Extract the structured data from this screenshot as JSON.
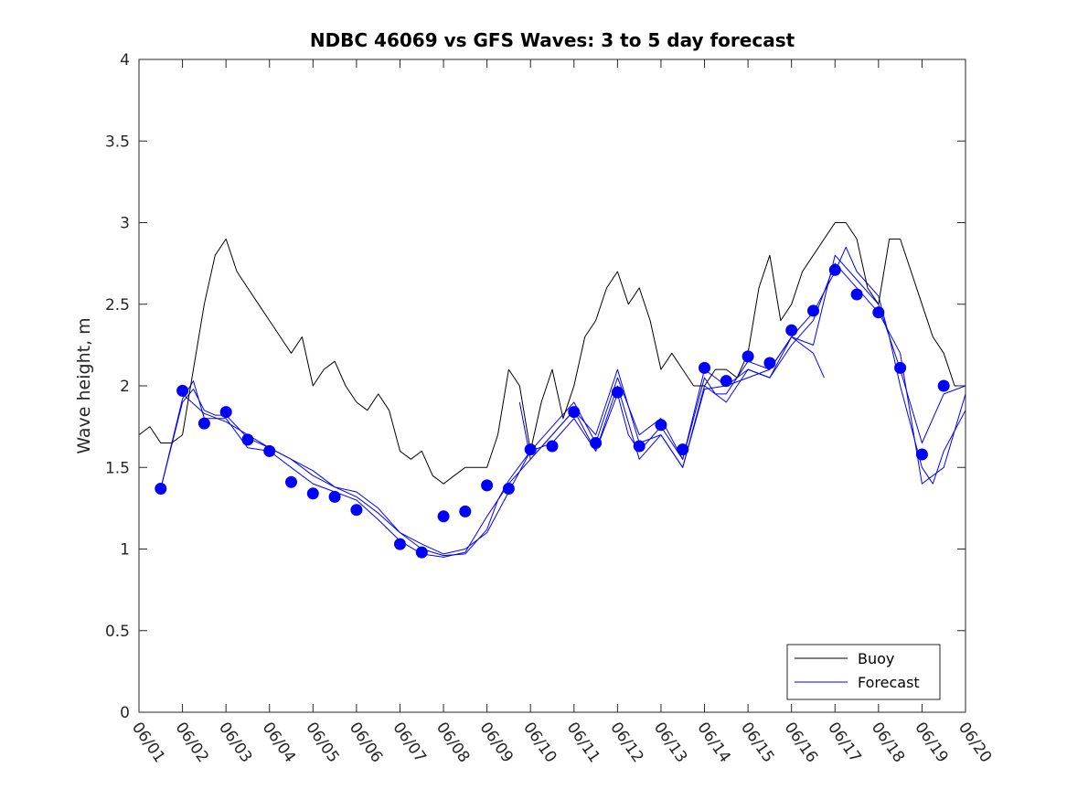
{
  "chart_data": {
    "type": "line",
    "title": "NDBC 46069 vs GFS Waves: 3 to 5 day forecast",
    "xlabel": "",
    "ylabel": "Wave height, m",
    "xlim": [
      "06/01",
      "06/20"
    ],
    "ylim": [
      0,
      4
    ],
    "yticks": [
      0,
      0.5,
      1,
      1.5,
      2,
      2.5,
      3,
      3.5,
      4
    ],
    "ytick_labels": [
      "0",
      "0.5",
      "1",
      "1.5",
      "2",
      "2.5",
      "3",
      "3.5",
      "4"
    ],
    "xtick_labels": [
      "06/01",
      "06/02",
      "06/03",
      "06/04",
      "06/05",
      "06/06",
      "06/07",
      "06/08",
      "06/09",
      "06/10",
      "06/11",
      "06/12",
      "06/13",
      "06/14",
      "06/15",
      "06/16",
      "06/17",
      "06/18",
      "06/19",
      "06/20"
    ],
    "grid": false,
    "legend_position": "bottom-right",
    "legend": [
      {
        "label": "Buoy",
        "color": "#000000"
      },
      {
        "label": "Forecast",
        "color": "#0000ff"
      }
    ],
    "colors": {
      "buoy": "#000000",
      "forecast": "#0000ff"
    },
    "buoy": {
      "name": "Buoy",
      "x": [
        "06/01 00:00",
        "06/01 06:00",
        "06/01 12:00",
        "06/01 18:00",
        "06/02 00:00",
        "06/02 06:00",
        "06/02 12:00",
        "06/02 18:00",
        "06/03 00:00",
        "06/03 06:00",
        "06/03 12:00",
        "06/03 18:00",
        "06/04 00:00",
        "06/04 06:00",
        "06/04 12:00",
        "06/04 18:00",
        "06/05 00:00",
        "06/05 06:00",
        "06/05 12:00",
        "06/05 18:00",
        "06/06 00:00",
        "06/06 06:00",
        "06/06 12:00",
        "06/06 18:00",
        "06/07 00:00",
        "06/07 06:00",
        "06/07 12:00",
        "06/07 18:00",
        "06/08 00:00",
        "06/08 06:00",
        "06/08 12:00",
        "06/08 18:00",
        "06/09 00:00",
        "06/09 06:00",
        "06/09 12:00",
        "06/09 18:00",
        "06/10 00:00",
        "06/10 06:00",
        "06/10 12:00",
        "06/10 18:00",
        "06/11 00:00",
        "06/11 06:00",
        "06/11 12:00",
        "06/11 18:00",
        "06/12 00:00",
        "06/12 06:00",
        "06/12 12:00",
        "06/12 18:00",
        "06/13 00:00",
        "06/13 06:00",
        "06/13 12:00",
        "06/13 18:00",
        "06/14 00:00",
        "06/14 06:00",
        "06/14 12:00",
        "06/14 18:00",
        "06/15 00:00",
        "06/15 06:00",
        "06/15 12:00",
        "06/15 18:00",
        "06/16 00:00",
        "06/16 06:00",
        "06/16 12:00",
        "06/16 18:00",
        "06/17 00:00",
        "06/17 06:00",
        "06/17 12:00",
        "06/17 18:00",
        "06/18 00:00",
        "06/18 06:00",
        "06/18 12:00",
        "06/18 18:00",
        "06/19 00:00",
        "06/19 06:00",
        "06/19 12:00",
        "06/19 18:00",
        "06/20 00:00"
      ],
      "values": [
        1.7,
        1.75,
        1.65,
        1.65,
        1.7,
        2.1,
        2.5,
        2.8,
        2.9,
        2.7,
        2.6,
        2.5,
        2.4,
        2.3,
        2.2,
        2.3,
        2.0,
        2.1,
        2.15,
        2.0,
        1.9,
        1.85,
        1.95,
        1.85,
        1.6,
        1.55,
        1.6,
        1.45,
        1.4,
        1.45,
        1.5,
        1.5,
        1.5,
        1.7,
        2.1,
        2.0,
        1.6,
        1.9,
        2.1,
        1.8,
        2.0,
        2.3,
        2.4,
        2.6,
        2.7,
        2.5,
        2.6,
        2.4,
        2.1,
        2.2,
        2.1,
        2.0,
        2.0,
        2.1,
        2.1,
        2.05,
        2.2,
        2.6,
        2.8,
        2.4,
        2.5,
        2.7,
        2.8,
        2.9,
        3.0,
        3.0,
        2.9,
        2.6,
        2.5,
        2.9,
        2.9,
        2.7,
        2.5,
        2.3,
        2.2,
        2.0,
        2.0
      ]
    },
    "forecast": {
      "name": "Forecast",
      "markers": {
        "x": [
          "06/01 12:00",
          "06/02 00:00",
          "06/02 12:00",
          "06/03 00:00",
          "06/03 12:00",
          "06/04 00:00",
          "06/04 12:00",
          "06/05 00:00",
          "06/05 12:00",
          "06/06 00:00",
          "06/07 00:00",
          "06/07 12:00",
          "06/08 00:00",
          "06/08 12:00",
          "06/09 00:00",
          "06/09 12:00",
          "06/10 00:00",
          "06/10 12:00",
          "06/11 00:00",
          "06/11 12:00",
          "06/12 00:00",
          "06/12 12:00",
          "06/13 00:00",
          "06/13 12:00",
          "06/14 00:00",
          "06/14 12:00",
          "06/15 00:00",
          "06/15 12:00",
          "06/16 00:00",
          "06/16 12:00",
          "06/17 00:00",
          "06/17 12:00",
          "06/18 00:00",
          "06/18 12:00",
          "06/19 00:00",
          "06/19 12:00"
        ],
        "values": [
          1.37,
          1.97,
          1.77,
          1.84,
          1.67,
          1.6,
          1.41,
          1.34,
          1.32,
          1.24,
          1.03,
          0.98,
          1.2,
          1.23,
          1.39,
          1.37,
          1.61,
          1.63,
          1.84,
          1.65,
          1.96,
          1.63,
          1.76,
          1.61,
          2.11,
          2.03,
          2.18,
          2.14,
          2.34,
          2.46,
          2.71,
          2.56,
          2.45,
          2.11,
          1.58,
          2.0
        ]
      },
      "runs": [
        {
          "x": [
            "06/01 12:00",
            "06/02 00:00",
            "06/02 06:00",
            "06/02 12:00",
            "06/02 18:00",
            "06/03 00:00",
            "06/03 12:00",
            "06/04 00:00",
            "06/04 12:00",
            "06/05 00:00",
            "06/05 12:00",
            "06/06 00:00",
            "06/06 12:00",
            "06/07 00:00",
            "06/07 12:00",
            "06/08 00:00",
            "06/08 12:00",
            "06/09 00:00",
            "06/09 06:00",
            "06/09 12:00",
            "06/10 00:00",
            "06/10 12:00",
            "06/11 00:00",
            "06/11 06:00",
            "06/11 12:00",
            "06/12 00:00",
            "06/12 06:00",
            "06/12 12:00",
            "06/13 00:00",
            "06/13 12:00",
            "06/14 00:00",
            "06/14 06:00",
            "06/14 12:00",
            "06/15 00:00",
            "06/15 12:00",
            "06/16 00:00",
            "06/16 12:00",
            "06/17 00:00",
            "06/17 06:00",
            "06/17 12:00",
            "06/18 00:00",
            "06/18 06:00",
            "06/18 12:00",
            "06/19 00:00",
            "06/19 06:00",
            "06/19 12:00",
            "06/20 00:00"
          ],
          "values": [
            1.37,
            1.9,
            1.98,
            1.85,
            1.82,
            1.82,
            1.68,
            1.62,
            1.55,
            1.48,
            1.38,
            1.32,
            1.22,
            1.1,
            1.0,
            0.96,
            0.97,
            1.12,
            1.3,
            1.42,
            1.6,
            1.65,
            1.8,
            1.7,
            1.6,
            1.95,
            1.7,
            1.6,
            1.75,
            1.55,
            2.05,
            1.95,
            1.95,
            2.15,
            2.1,
            2.3,
            2.45,
            2.7,
            2.85,
            2.7,
            2.55,
            2.3,
            2.0,
            1.5,
            1.4,
            1.6,
            1.85
          ]
        },
        {
          "x": [
            "06/01 12:00",
            "06/02 00:00",
            "06/02 06:00",
            "06/02 12:00",
            "06/03 00:00",
            "06/03 12:00",
            "06/04 00:00",
            "06/04 12:00",
            "06/05 00:00",
            "06/05 12:00",
            "06/06 00:00",
            "06/06 12:00",
            "06/07 00:00",
            "06/07 12:00",
            "06/08 00:00",
            "06/08 12:00",
            "06/09 00:00",
            "06/09 12:00",
            "06/10 00:00",
            "06/10 12:00",
            "06/11 00:00",
            "06/11 12:00",
            "06/12 00:00",
            "06/12 12:00",
            "06/13 00:00",
            "06/13 12:00",
            "06/14 00:00",
            "06/14 12:00",
            "06/15 00:00",
            "06/15 12:00",
            "06/16 00:00",
            "06/16 12:00",
            "06/17 00:00",
            "06/17 12:00",
            "06/18 00:00",
            "06/18 12:00",
            "06/19 00:00",
            "06/19 12:00",
            "06/20 00:00"
          ],
          "values": [
            1.37,
            1.92,
            2.03,
            1.8,
            1.8,
            1.62,
            1.6,
            1.5,
            1.4,
            1.35,
            1.3,
            1.18,
            1.05,
            0.97,
            0.95,
            0.98,
            1.2,
            1.4,
            1.55,
            1.7,
            1.85,
            1.6,
            2.0,
            1.55,
            1.7,
            1.5,
            1.98,
            2.0,
            2.1,
            2.05,
            2.25,
            2.4,
            2.75,
            2.6,
            2.45,
            2.2,
            1.4,
            1.5,
            1.95
          ]
        },
        {
          "x": [
            "06/02 00:00",
            "06/02 12:00",
            "06/03 00:00",
            "06/03 12:00",
            "06/04 00:00",
            "06/04 12:00",
            "06/05 00:00",
            "06/05 12:00",
            "06/06 00:00",
            "06/06 12:00",
            "06/07 00:00",
            "06/07 12:00",
            "06/08 00:00",
            "06/08 12:00",
            "06/09 00:00",
            "06/09 12:00",
            "06/10 00:00",
            "06/10 12:00",
            "06/11 00:00",
            "06/11 12:00",
            "06/12 00:00",
            "06/12 12:00",
            "06/13 00:00",
            "06/13 12:00",
            "06/14 00:00",
            "06/14 12:00",
            "06/15 00:00",
            "06/15 12:00",
            "06/16 00:00",
            "06/16 12:00",
            "06/16 18:00"
          ],
          "values": [
            1.95,
            1.83,
            1.78,
            1.7,
            1.62,
            1.55,
            1.45,
            1.38,
            1.35,
            1.25,
            1.1,
            1.03,
            0.97,
            1.0,
            1.1,
            1.35,
            1.6,
            1.75,
            1.9,
            1.65,
            2.05,
            1.7,
            1.8,
            1.55,
            2.1,
            2.0,
            2.05,
            2.1,
            2.3,
            2.2,
            2.05
          ]
        },
        {
          "x": [
            "06/09 18:00",
            "06/10 00:00",
            "06/10 12:00",
            "06/11 00:00",
            "06/11 12:00",
            "06/12 00:00",
            "06/12 12:00",
            "06/13 00:00",
            "06/13 12:00",
            "06/14 00:00",
            "06/14 12:00",
            "06/15 00:00",
            "06/15 12:00",
            "06/16 00:00",
            "06/16 12:00",
            "06/17 00:00",
            "06/17 12:00",
            "06/18 00:00",
            "06/18 12:00",
            "06/19 00:00",
            "06/19 12:00",
            "06/20 00:00"
          ],
          "values": [
            1.9,
            1.55,
            1.7,
            1.85,
            1.7,
            2.1,
            1.65,
            1.7,
            1.5,
            2.0,
            1.9,
            2.1,
            2.05,
            2.3,
            2.25,
            2.8,
            2.65,
            2.5,
            2.1,
            1.65,
            1.95,
            2.0
          ]
        }
      ]
    }
  }
}
